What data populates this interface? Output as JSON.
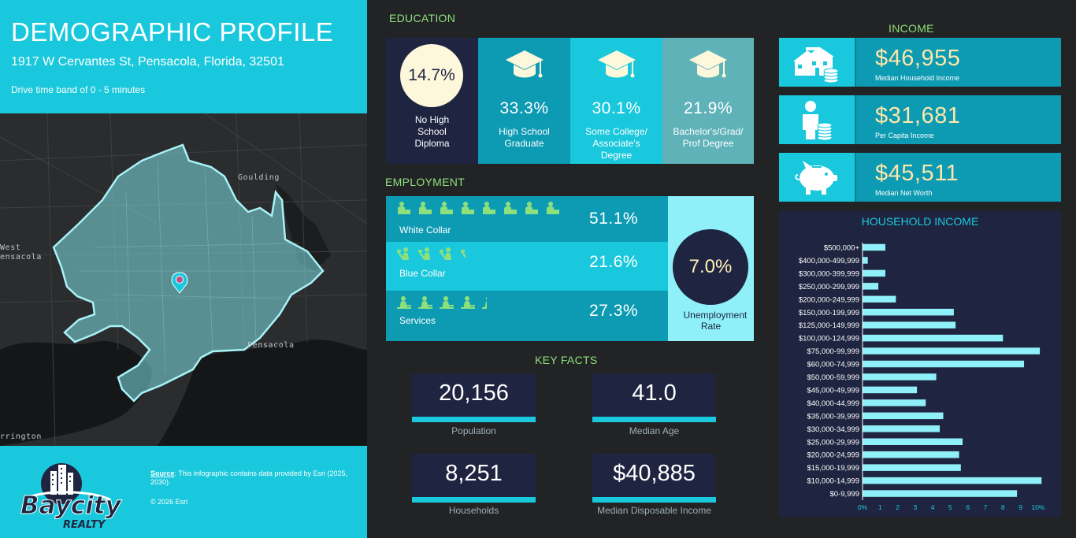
{
  "header": {
    "title": "DEMOGRAPHIC PROFILE",
    "address": "1917 W Cervantes St, Pensacola, Florida, 32501",
    "drive_band": "Drive time band of 0 - 5 minutes"
  },
  "map": {
    "labels": {
      "goulding": "Goulding",
      "west": "West",
      "pensacola_left": "ensacola",
      "pensacola": "Pensacola",
      "warrington": "rrington"
    },
    "pin_icon": "location-pin-icon",
    "area_color": "#7fe0e6"
  },
  "footer": {
    "logo_text_1": "Baycity",
    "logo_text_2": "REALTY",
    "source_label": "Source",
    "source_text": ": This infographic contains data provided by Esri (2025, 2030).",
    "copyright": "© 2026 Esri"
  },
  "education": {
    "title": "EDUCATION",
    "items": [
      {
        "pct": "14.7%",
        "label": "No High School Diploma",
        "color": "#1f2540"
      },
      {
        "pct": "33.3%",
        "label": "High School Graduate",
        "color": "#0d9ab3"
      },
      {
        "pct": "30.1%",
        "label": "Some College/ Associate's Degree",
        "color": "#19c8dc"
      },
      {
        "pct": "21.9%",
        "label": "Bachelor's/Grad/ Prof Degree",
        "color": "#5fb3b8"
      }
    ]
  },
  "employment": {
    "title": "EMPLOYMENT",
    "rows": [
      {
        "label": "White Collar",
        "pct": "51.1%",
        "icons": 8,
        "color": "#0d9ab3"
      },
      {
        "label": "Blue Collar",
        "pct": "21.6%",
        "icons": 4,
        "color": "#19c8dc"
      },
      {
        "label": "Services",
        "pct": "27.3%",
        "icons": 5,
        "color": "#0d9ab3"
      }
    ],
    "unemployment_value": "7.0%",
    "unemployment_label": "Unemployment Rate"
  },
  "key_facts": {
    "title": "KEY FACTS",
    "population": "20,156",
    "population_label": "Population",
    "median_age": "41.0",
    "median_age_label": "Median Age",
    "households": "8,251",
    "households_label": "Households",
    "disposable_income": "$40,885",
    "disposable_income_label": "Median Disposable Income"
  },
  "income": {
    "title": "INCOME",
    "rows": [
      {
        "value": "$46,955",
        "label": "Median Household Income",
        "icon": "house-money-icon"
      },
      {
        "value": "$31,681",
        "label": "Per Capita Income",
        "icon": "person-coins-icon"
      },
      {
        "value": "$45,511",
        "label": "Median Net Worth",
        "icon": "piggy-bank-icon"
      }
    ]
  },
  "chart_data": {
    "type": "bar",
    "orientation": "horizontal",
    "title": "HOUSEHOLD INCOME",
    "categories": [
      "$500,000+",
      "$400,000-499,999",
      "$300,000-399,999",
      "$250,000-299,999",
      "$200,000-249,999",
      "$150,000-199,999",
      "$125,000-149,999",
      "$100,000-124,999",
      "$75,000-99,999",
      "$60,000-74,999",
      "$50,000-59,999",
      "$45,000-49,999",
      "$40,000-44,999",
      "$35,000-39,999",
      "$30,000-34,999",
      "$25,000-29,999",
      "$20,000-24,999",
      "$15,000-19,999",
      "$10,000-14,999",
      "$0-9,999"
    ],
    "values": [
      1.3,
      0.3,
      1.3,
      0.9,
      1.9,
      5.2,
      5.3,
      8.0,
      10.1,
      9.2,
      4.2,
      3.1,
      3.6,
      4.6,
      4.4,
      5.7,
      5.5,
      5.6,
      10.2,
      8.8
    ],
    "xticks": [
      "0%",
      "1",
      "2",
      "3",
      "4",
      "5",
      "6",
      "7",
      "8",
      "9",
      "10%"
    ],
    "xlim": [
      0,
      10.5
    ],
    "bar_color": "#8ff0f9"
  }
}
